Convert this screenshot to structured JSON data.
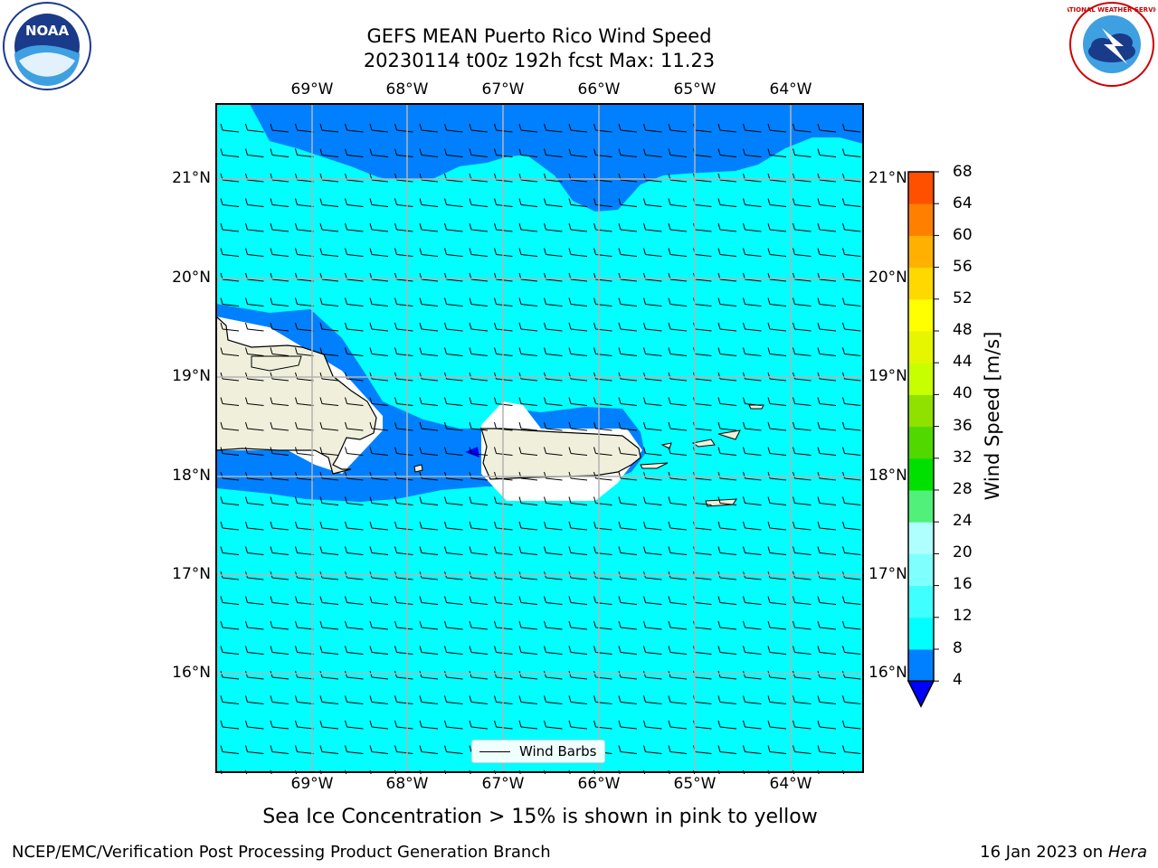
{
  "title": {
    "line1": "GEFS MEAN Puerto Rico Wind Speed",
    "line2": "20230114 t00z 192h fcst   Max: 11.23"
  },
  "logos": {
    "left": {
      "icon": "noaa-logo",
      "text": "NOAA"
    },
    "right": {
      "icon": "nws-logo",
      "text": "NATIONAL WEATHER SERVICE"
    }
  },
  "map": {
    "lon_labels": [
      "69°W",
      "68°W",
      "67°W",
      "66°W",
      "65°W",
      "64°W"
    ],
    "lat_labels": [
      "21°N",
      "20°N",
      "19°N",
      "18°N",
      "17°N",
      "16°N"
    ],
    "extent": {
      "lon": [
        -70.0,
        -63.25
      ],
      "lat": [
        15.0,
        21.75
      ]
    },
    "land_color": "#efefdc",
    "legend_label": "Wind Barbs"
  },
  "colorbar": {
    "label": "Wind Speed [m/s]",
    "ticks": [
      "68",
      "64",
      "60",
      "56",
      "52",
      "48",
      "44",
      "40",
      "36",
      "32",
      "28",
      "24",
      "20",
      "16",
      "12",
      "8",
      "4"
    ],
    "colors": [
      "#0000ff",
      "#0080ff",
      "#00ffff",
      "#40ffff",
      "#80ffff",
      "#b0ffff",
      "#50f07a",
      "#00e000",
      "#50d800",
      "#90e000",
      "#c8ff00",
      "#e6f500",
      "#ffff00",
      "#ffd800",
      "#ffb000",
      "#ff8000",
      "#ff5000",
      "#ff2000",
      "#ff0000"
    ]
  },
  "note": "Sea Ice Concentration > 15% is shown in pink to yellow",
  "footer": {
    "left": "NCEP/EMC/Verification Post Processing Product Generation Branch",
    "right_prefix": "16 Jan 2023 on ",
    "right_host": "Hera"
  }
}
